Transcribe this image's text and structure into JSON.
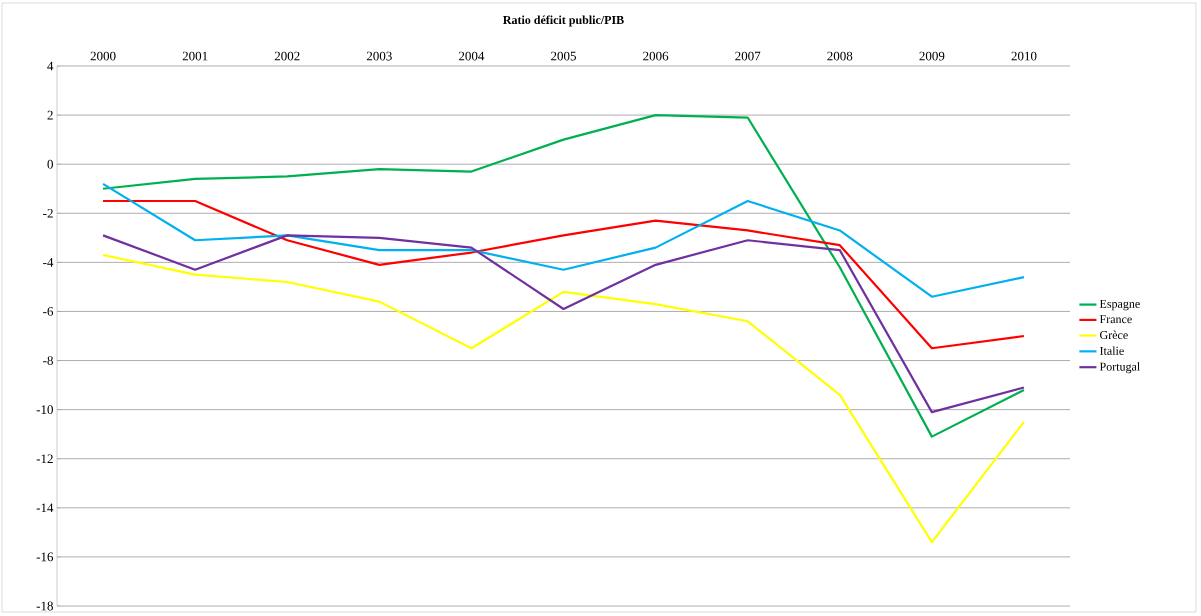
{
  "chart_data": {
    "type": "line",
    "title": "Ratio déficit public/PIB",
    "categories": [
      "2000",
      "2001",
      "2002",
      "2003",
      "2004",
      "2005",
      "2006",
      "2007",
      "2008",
      "2009",
      "2010"
    ],
    "series": [
      {
        "name": "Espagne",
        "color": "#00b050",
        "values": [
          -1.0,
          -0.6,
          -0.5,
          -0.2,
          -0.3,
          1.0,
          2.0,
          1.9,
          -4.2,
          -11.1,
          -9.2
        ]
      },
      {
        "name": "France",
        "color": "#ff0000",
        "values": [
          -1.5,
          -1.5,
          -3.1,
          -4.1,
          -3.6,
          -2.9,
          -2.3,
          -2.7,
          -3.3,
          -7.5,
          -7.0
        ]
      },
      {
        "name": "Grèce",
        "color": "#ffff00",
        "values": [
          -3.7,
          -4.5,
          -4.8,
          -5.6,
          -7.5,
          -5.2,
          -5.7,
          -6.4,
          -9.4,
          -15.4,
          -10.5
        ]
      },
      {
        "name": "Italie",
        "color": "#00b0f0",
        "values": [
          -0.8,
          -3.1,
          -2.9,
          -3.5,
          -3.5,
          -4.3,
          -3.4,
          -1.5,
          -2.7,
          -5.4,
          -4.6
        ]
      },
      {
        "name": "Portugal",
        "color": "#7030a0",
        "values": [
          -2.9,
          -4.3,
          -2.9,
          -3.0,
          -3.4,
          -5.9,
          -4.1,
          -3.1,
          -3.5,
          -10.1,
          -9.1
        ]
      }
    ],
    "ylim": [
      -18,
      4
    ],
    "yticks": [
      -18,
      -16,
      -14,
      -12,
      -10,
      -8,
      -6,
      -4,
      -2,
      0,
      2,
      4
    ],
    "grid": "y",
    "legend": "right"
  }
}
